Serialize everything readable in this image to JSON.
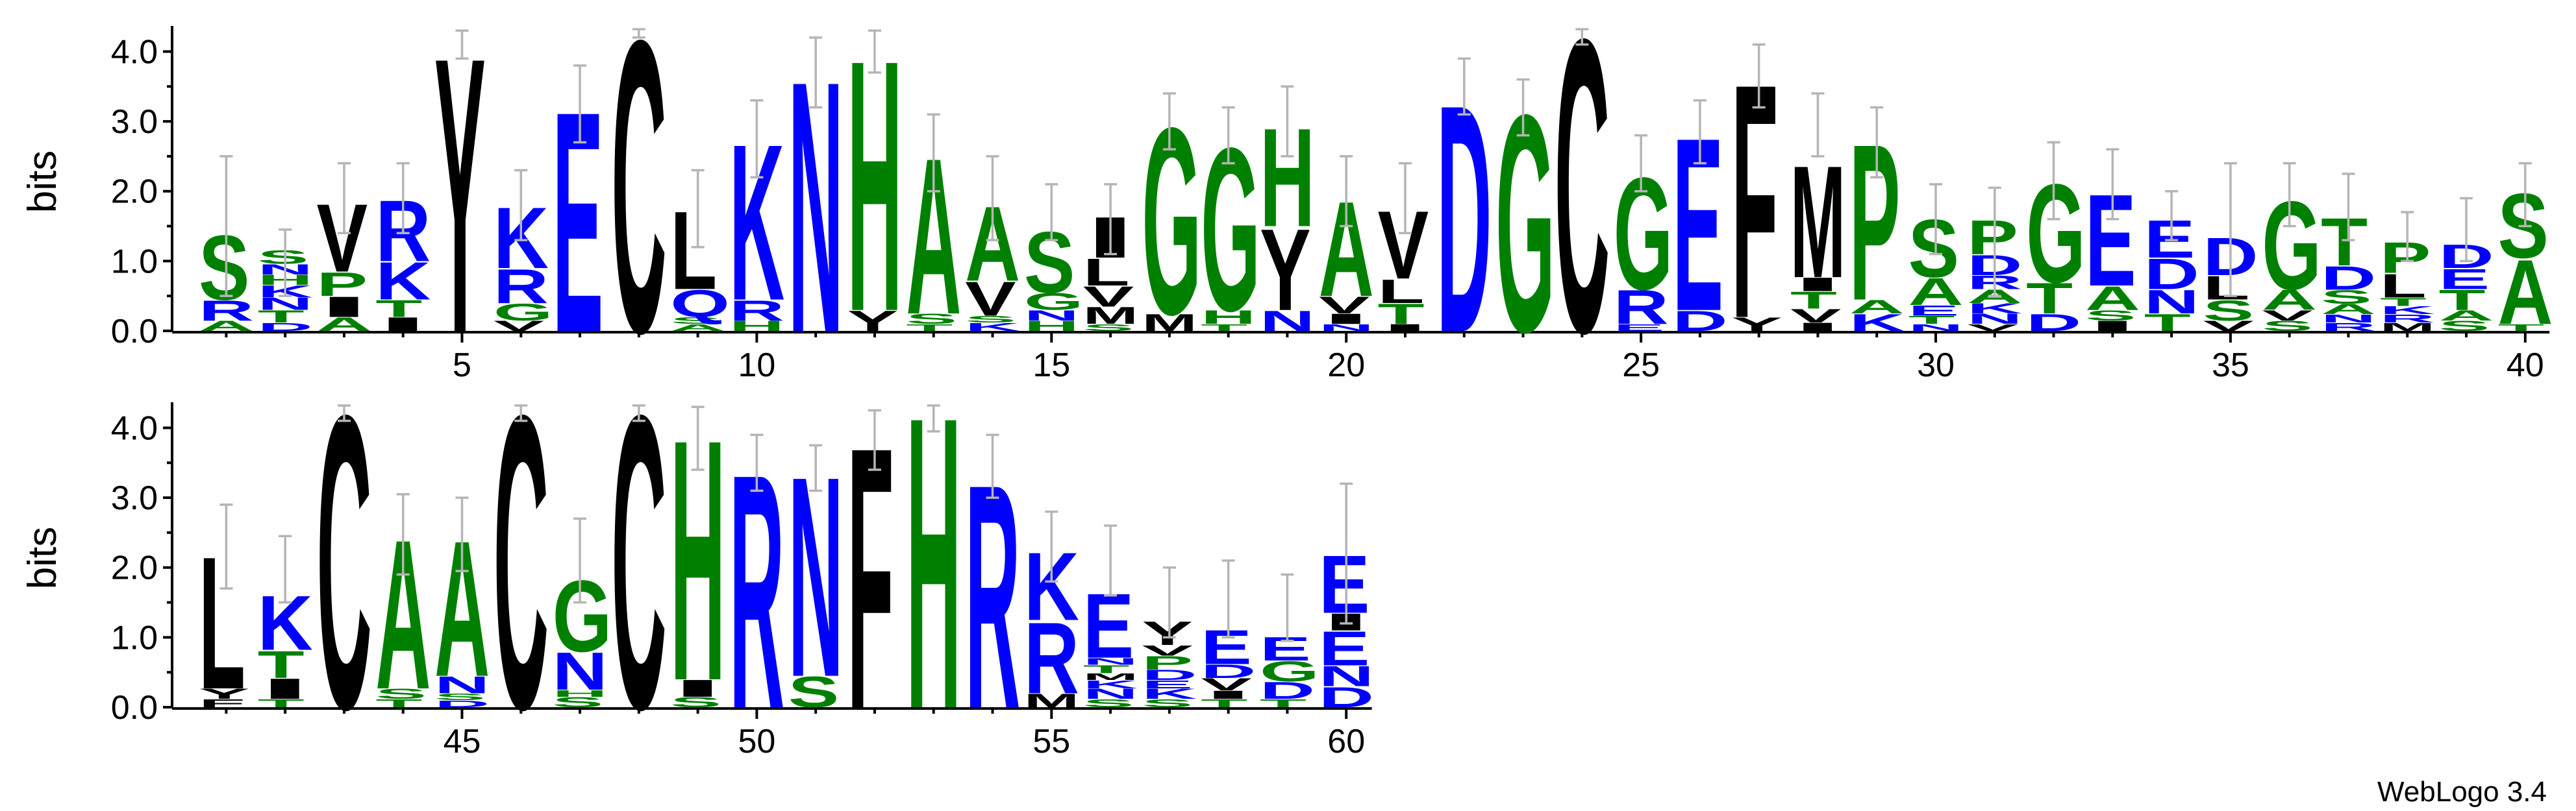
{
  "footer": "WebLogo 3.4",
  "colors": {
    "hydrophobic": "#000000",
    "basic": "#0000ff",
    "polar": "#008000",
    "error_bar": "#b5b5b5"
  },
  "chart_data": {
    "type": "sequence-logo",
    "ylabel": "bits",
    "ylim": [
      0,
      4.32
    ],
    "yticks": [
      0.0,
      1.0,
      2.0,
      3.0,
      4.0
    ],
    "ytick_labels": [
      "0.0",
      "1.0",
      "2.0",
      "3.0",
      "4.0"
    ],
    "rows": [
      {
        "positions": [
          1,
          40
        ],
        "xticks": [
          5,
          10,
          15,
          20,
          25,
          30,
          35,
          40
        ]
      },
      {
        "positions": [
          41,
          60
        ],
        "xticks": [
          45,
          50,
          55,
          60
        ]
      }
    ],
    "positions": [
      {
        "pos": 1,
        "err": [
          0.5,
          2.5
        ],
        "stack": [
          [
            "A",
            0.15
          ],
          [
            "R",
            0.3
          ],
          [
            "S",
            0.95
          ]
        ]
      },
      {
        "pos": 2,
        "err": [
          0.5,
          1.45
        ],
        "stack": [
          [
            "D",
            0.12
          ],
          [
            "T",
            0.18
          ],
          [
            "N",
            0.18
          ],
          [
            "K",
            0.18
          ],
          [
            "H",
            0.15
          ],
          [
            "N",
            0.15
          ],
          [
            "S",
            0.2
          ]
        ]
      },
      {
        "pos": 3,
        "err": [
          1.4,
          2.4
        ],
        "stack": [
          [
            "A",
            0.2
          ],
          [
            "I",
            0.3
          ],
          [
            "P",
            0.35
          ],
          [
            "V",
            1.0
          ]
        ]
      },
      {
        "pos": 4,
        "err": [
          1.4,
          2.4
        ],
        "stack": [
          [
            "I",
            0.2
          ],
          [
            "T",
            0.25
          ],
          [
            "K",
            0.55
          ],
          [
            "R",
            0.9
          ]
        ]
      },
      {
        "pos": 5,
        "err": [
          3.9,
          4.3
        ],
        "stack": [
          [
            "Y",
            4.05
          ]
        ]
      },
      {
        "pos": 6,
        "err": [
          1.3,
          2.3
        ],
        "stack": [
          [
            "V",
            0.15
          ],
          [
            "G",
            0.25
          ],
          [
            "R",
            0.5
          ],
          [
            "K",
            0.9
          ]
        ]
      },
      {
        "pos": 7,
        "err": [
          2.7,
          3.8
        ],
        "stack": [
          [
            "E",
            3.25
          ]
        ]
      },
      {
        "pos": 8,
        "err": [
          4.2,
          4.32
        ],
        "stack": [
          [
            "C",
            4.3
          ]
        ]
      },
      {
        "pos": 9,
        "err": [
          1.2,
          2.3
        ],
        "stack": [
          [
            "A",
            0.1
          ],
          [
            "S",
            0.1
          ],
          [
            "Q",
            0.4
          ],
          [
            "L",
            1.15
          ]
        ]
      },
      {
        "pos": 10,
        "err": [
          2.2,
          3.3
        ],
        "stack": [
          [
            "H",
            0.15
          ],
          [
            "R",
            0.3
          ],
          [
            "K",
            2.3
          ]
        ]
      },
      {
        "pos": 11,
        "err": [
          3.2,
          4.2
        ],
        "stack": [
          [
            "N",
            3.7
          ]
        ]
      },
      {
        "pos": 12,
        "err": [
          3.7,
          4.3
        ],
        "stack": [
          [
            "Y",
            0.3
          ],
          [
            "H",
            3.7
          ]
        ]
      },
      {
        "pos": 13,
        "err": [
          2.0,
          3.1
        ],
        "stack": [
          [
            "T",
            0.1
          ],
          [
            "S",
            0.15
          ],
          [
            "A",
            2.3
          ]
        ]
      },
      {
        "pos": 14,
        "err": [
          1.3,
          2.5
        ],
        "stack": [
          [
            "K",
            0.12
          ],
          [
            "S",
            0.1
          ],
          [
            "V",
            0.5
          ],
          [
            "A",
            1.1
          ]
        ]
      },
      {
        "pos": 15,
        "err": [
          1.3,
          2.1
        ],
        "stack": [
          [
            "H",
            0.15
          ],
          [
            "N",
            0.15
          ],
          [
            "G",
            0.25
          ],
          [
            "S",
            0.9
          ]
        ]
      },
      {
        "pos": 16,
        "err": [
          1.1,
          2.1
        ],
        "stack": [
          [
            "S",
            0.1
          ],
          [
            "M",
            0.25
          ],
          [
            "V",
            0.3
          ],
          [
            "L",
            0.4
          ],
          [
            "I",
            0.6
          ]
        ]
      },
      {
        "pos": 17,
        "err": [
          2.6,
          3.4
        ],
        "stack": [
          [
            "M",
            0.25
          ],
          [
            "G",
            2.75
          ]
        ]
      },
      {
        "pos": 18,
        "err": [
          2.4,
          3.2
        ],
        "stack": [
          [
            "T",
            0.1
          ],
          [
            "H",
            0.2
          ],
          [
            "G",
            2.4
          ]
        ]
      },
      {
        "pos": 19,
        "err": [
          2.5,
          3.5
        ],
        "stack": [
          [
            "N",
            0.3
          ],
          [
            "Y",
            1.2
          ],
          [
            "H",
            1.45
          ]
        ]
      },
      {
        "pos": 20,
        "err": [
          1.5,
          2.5
        ],
        "stack": [
          [
            "N",
            0.1
          ],
          [
            "I",
            0.15
          ],
          [
            "V",
            0.25
          ],
          [
            "A",
            1.4
          ]
        ]
      },
      {
        "pos": 21,
        "err": [
          1.4,
          2.4
        ],
        "stack": [
          [
            "I",
            0.1
          ],
          [
            "T",
            0.3
          ],
          [
            "L",
            0.35
          ],
          [
            "V",
            1.0
          ]
        ]
      },
      {
        "pos": 22,
        "err": [
          3.1,
          3.9
        ],
        "stack": [
          [
            "D",
            3.35
          ]
        ]
      },
      {
        "pos": 23,
        "err": [
          2.8,
          3.6
        ],
        "stack": [
          [
            "G",
            3.2
          ]
        ]
      },
      {
        "pos": 24,
        "err": [
          4.1,
          4.32
        ],
        "stack": [
          [
            "C",
            4.32
          ]
        ]
      },
      {
        "pos": 25,
        "err": [
          2.0,
          2.8
        ],
        "stack": [
          [
            "E",
            0.1
          ],
          [
            "R",
            0.5
          ],
          [
            "G",
            1.65
          ]
        ]
      },
      {
        "pos": 26,
        "err": [
          2.4,
          3.3
        ],
        "stack": [
          [
            "D",
            0.3
          ],
          [
            "E",
            2.55
          ]
        ]
      },
      {
        "pos": 27,
        "err": [
          3.2,
          4.1
        ],
        "stack": [
          [
            "Y",
            0.2
          ],
          [
            "F",
            3.45
          ]
        ]
      },
      {
        "pos": 28,
        "err": [
          2.5,
          3.4
        ],
        "stack": [
          [
            "I",
            0.12
          ],
          [
            "V",
            0.2
          ],
          [
            "T",
            0.25
          ],
          [
            "I",
            0.2
          ],
          [
            "M",
            1.65
          ]
        ]
      },
      {
        "pos": 29,
        "err": [
          2.2,
          3.2
        ],
        "stack": [
          [
            "K",
            0.25
          ],
          [
            "A",
            0.2
          ],
          [
            "P",
            2.3
          ]
        ]
      },
      {
        "pos": 30,
        "err": [
          1.1,
          2.1
        ],
        "stack": [
          [
            "N",
            0.1
          ],
          [
            "T",
            0.12
          ],
          [
            "E",
            0.15
          ],
          [
            "A",
            0.4
          ],
          [
            "S",
            0.85
          ]
        ]
      },
      {
        "pos": 31,
        "err": [
          0.5,
          2.05
        ],
        "stack": [
          [
            "V",
            0.1
          ],
          [
            "N",
            0.15
          ],
          [
            "K",
            0.15
          ],
          [
            "A",
            0.2
          ],
          [
            "R",
            0.2
          ],
          [
            "D",
            0.3
          ],
          [
            "P",
            0.5
          ]
        ]
      },
      {
        "pos": 32,
        "err": [
          1.6,
          2.7
        ],
        "stack": [
          [
            "D",
            0.25
          ],
          [
            "T",
            0.45
          ],
          [
            "G",
            1.45
          ]
        ]
      },
      {
        "pos": 33,
        "err": [
          1.6,
          2.6
        ],
        "stack": [
          [
            "I",
            0.15
          ],
          [
            "S",
            0.15
          ],
          [
            "A",
            0.35
          ],
          [
            "E",
            1.35
          ]
        ]
      },
      {
        "pos": 34,
        "err": [
          1.3,
          2.0
        ],
        "stack": [
          [
            "T",
            0.25
          ],
          [
            "N",
            0.35
          ],
          [
            "D",
            0.45
          ],
          [
            "E",
            0.55
          ]
        ]
      },
      {
        "pos": 35,
        "err": [
          0.5,
          2.4
        ],
        "stack": [
          [
            "V",
            0.15
          ],
          [
            "S",
            0.3
          ],
          [
            "L",
            0.35
          ],
          [
            "D",
            0.55
          ]
        ]
      },
      {
        "pos": 36,
        "err": [
          1.5,
          2.4
        ],
        "stack": [
          [
            "S",
            0.15
          ],
          [
            "V",
            0.15
          ],
          [
            "A",
            0.3
          ],
          [
            "G",
            1.3
          ]
        ]
      },
      {
        "pos": 37,
        "err": [
          1.3,
          2.25
        ],
        "stack": [
          [
            "R",
            0.12
          ],
          [
            "N",
            0.12
          ],
          [
            "A",
            0.15
          ],
          [
            "S",
            0.2
          ],
          [
            "D",
            0.35
          ],
          [
            "T",
            0.7
          ]
        ]
      },
      {
        "pos": 38,
        "err": [
          1.0,
          1.7
        ],
        "stack": [
          [
            "M",
            0.12
          ],
          [
            "R",
            0.12
          ],
          [
            "K",
            0.12
          ],
          [
            "T",
            0.12
          ],
          [
            "L",
            0.35
          ],
          [
            "P",
            0.45
          ]
        ]
      },
      {
        "pos": 39,
        "err": [
          1.0,
          1.9
        ],
        "stack": [
          [
            "S",
            0.15
          ],
          [
            "A",
            0.15
          ],
          [
            "T",
            0.3
          ],
          [
            "E",
            0.3
          ],
          [
            "D",
            0.35
          ]
        ]
      },
      {
        "pos": 40,
        "err": [
          1.5,
          2.4
        ],
        "stack": [
          [
            "T",
            0.1
          ],
          [
            "A",
            0.95
          ],
          [
            "S",
            0.95
          ]
        ]
      },
      {
        "pos": 41,
        "err": [
          1.7,
          2.9
        ],
        "stack": [
          [
            "F",
            0.12
          ],
          [
            "Y",
            0.15
          ],
          [
            "L",
            1.95
          ]
        ]
      },
      {
        "pos": 42,
        "err": [
          1.5,
          2.45
        ],
        "stack": [
          [
            "T",
            0.12
          ],
          [
            "I",
            0.3
          ],
          [
            "T",
            0.4
          ],
          [
            "K",
            0.8
          ]
        ]
      },
      {
        "pos": 43,
        "err": [
          4.1,
          4.32
        ],
        "stack": [
          [
            "C",
            4.32
          ]
        ]
      },
      {
        "pos": 44,
        "err": [
          1.9,
          3.05
        ],
        "stack": [
          [
            "T",
            0.12
          ],
          [
            "S",
            0.15
          ],
          [
            "A",
            2.2
          ]
        ]
      },
      {
        "pos": 45,
        "err": [
          1.95,
          3.0
        ],
        "stack": [
          [
            "D",
            0.1
          ],
          [
            "S",
            0.1
          ],
          [
            "N",
            0.25
          ],
          [
            "A",
            2.0
          ]
        ]
      },
      {
        "pos": 46,
        "err": [
          4.1,
          4.32
        ],
        "stack": [
          [
            "C",
            4.32
          ]
        ]
      },
      {
        "pos": 47,
        "err": [
          1.5,
          2.7
        ],
        "stack": [
          [
            "S",
            0.15
          ],
          [
            "H",
            0.1
          ],
          [
            "N",
            0.55
          ],
          [
            "G",
            1.05
          ]
        ]
      },
      {
        "pos": 48,
        "err": [
          4.1,
          4.32
        ],
        "stack": [
          [
            "C",
            4.32
          ]
        ]
      },
      {
        "pos": 49,
        "err": [
          3.4,
          4.3
        ],
        "stack": [
          [
            "S",
            0.15
          ],
          [
            "I",
            0.25
          ],
          [
            "H",
            3.55
          ]
        ]
      },
      {
        "pos": 50,
        "err": [
          3.1,
          3.9
        ],
        "stack": [
          [
            "R",
            3.45
          ]
        ]
      },
      {
        "pos": 51,
        "err": [
          3.1,
          3.75
        ],
        "stack": [
          [
            "S",
            0.45
          ],
          [
            "N",
            2.95
          ]
        ]
      },
      {
        "pos": 52,
        "err": [
          3.4,
          4.25
        ],
        "stack": [
          [
            "F",
            3.85
          ]
        ]
      },
      {
        "pos": 53,
        "err": [
          3.95,
          4.32
        ],
        "stack": [
          [
            "H",
            4.3
          ]
        ]
      },
      {
        "pos": 54,
        "err": [
          3.0,
          3.9
        ],
        "stack": [
          [
            "R",
            3.3
          ]
        ]
      },
      {
        "pos": 55,
        "err": [
          1.8,
          2.8
        ],
        "stack": [
          [
            "M",
            0.2
          ],
          [
            "R",
            1.05
          ],
          [
            "K",
            1.0
          ]
        ]
      },
      {
        "pos": 56,
        "err": [
          1.6,
          2.6
        ],
        "stack": [
          [
            "S",
            0.12
          ],
          [
            "N",
            0.15
          ],
          [
            "K",
            0.12
          ],
          [
            "M",
            0.1
          ],
          [
            "T",
            0.12
          ],
          [
            "N",
            0.1
          ],
          [
            "E",
            0.95
          ]
        ]
      },
      {
        "pos": 57,
        "err": [
          1.0,
          2.0
        ],
        "stack": [
          [
            "S",
            0.12
          ],
          [
            "K",
            0.15
          ],
          [
            "E",
            0.12
          ],
          [
            "D",
            0.15
          ],
          [
            "P",
            0.2
          ],
          [
            "V",
            0.15
          ],
          [
            "Y",
            0.35
          ]
        ]
      },
      {
        "pos": 58,
        "err": [
          1.0,
          2.1
        ],
        "stack": [
          [
            "T",
            0.12
          ],
          [
            "I",
            0.12
          ],
          [
            "V",
            0.18
          ],
          [
            "D",
            0.2
          ],
          [
            "E",
            0.5
          ]
        ]
      },
      {
        "pos": 59,
        "err": [
          0.95,
          1.9
        ],
        "stack": [
          [
            "T",
            0.12
          ],
          [
            "D",
            0.25
          ],
          [
            "G",
            0.3
          ],
          [
            "E",
            0.35
          ]
        ]
      },
      {
        "pos": 60,
        "err": [
          1.2,
          3.2
        ],
        "stack": [
          [
            "D",
            0.3
          ],
          [
            "N",
            0.3
          ],
          [
            "E",
            0.5
          ],
          [
            "I",
            0.25
          ],
          [
            "E",
            0.85
          ]
        ]
      }
    ]
  }
}
